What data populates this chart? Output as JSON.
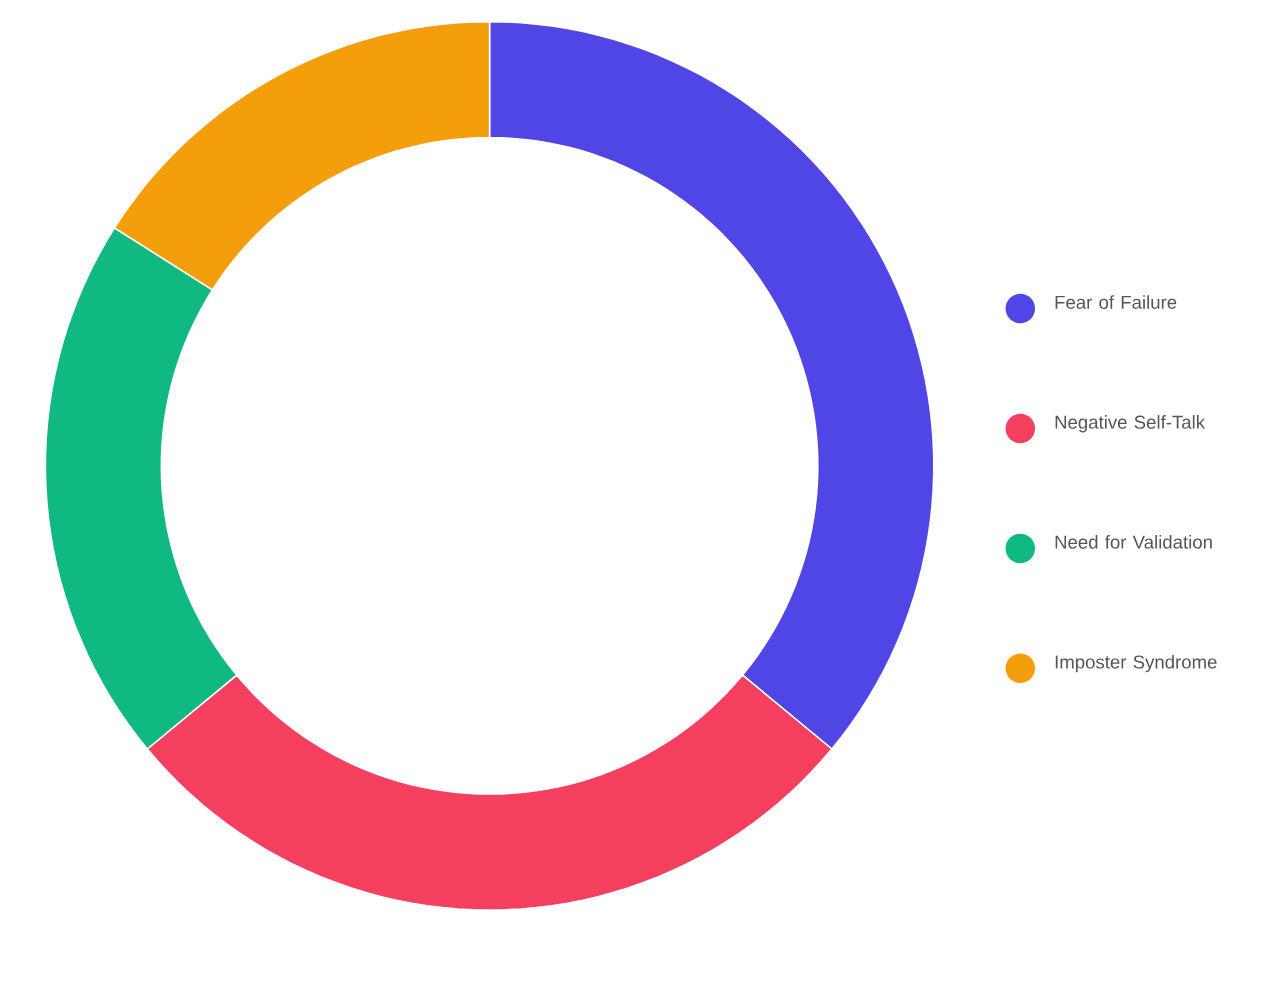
{
  "chart_data": {
    "type": "donut",
    "categories": [
      "Fear of Failure",
      "Negative Self-Talk",
      "Need for Validation",
      "Imposter Syndrome"
    ],
    "values": [
      36,
      28,
      20,
      16
    ],
    "colors": [
      "#4f46e5",
      "#f43f5e",
      "#10b981",
      "#f59e0b"
    ],
    "legend": "right"
  }
}
